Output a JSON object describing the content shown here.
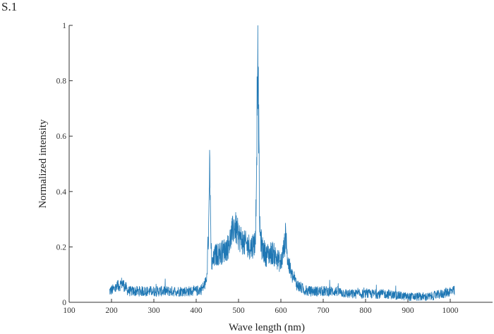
{
  "figure_label": "S.1",
  "chart_data": {
    "type": "line",
    "title": "",
    "xlabel": "Wave length (nm)",
    "ylabel": "Normalized intensity",
    "xlim": [
      100,
      1100
    ],
    "ylim": [
      0,
      1
    ],
    "x_ticks": [
      100,
      200,
      300,
      400,
      500,
      600,
      700,
      800,
      900,
      1000
    ],
    "y_ticks": [
      0,
      0.2,
      0.4,
      0.6,
      0.8,
      1
    ],
    "y_tick_labels": [
      "0",
      "0.2",
      "0.4",
      "0.6",
      "0.8",
      "1"
    ],
    "grid": false,
    "legend": "none",
    "series": [
      {
        "color": "#1f77b4",
        "x": [
          195,
          210,
          225,
          240,
          260,
          280,
          300,
          320,
          340,
          360,
          380,
          400,
          415,
          425,
          430,
          432,
          434,
          437,
          445,
          460,
          475,
          485,
          490,
          500,
          515,
          530,
          540,
          543,
          545,
          547,
          550,
          555,
          565,
          580,
          590,
          600,
          608,
          612,
          616,
          625,
          640,
          660,
          680,
          700,
          730,
          760,
          800,
          850,
          900,
          950,
          980,
          1000,
          1010
        ],
        "y": [
          0.04,
          0.05,
          0.07,
          0.04,
          0.04,
          0.04,
          0.04,
          0.04,
          0.04,
          0.04,
          0.04,
          0.04,
          0.05,
          0.08,
          0.3,
          0.55,
          0.25,
          0.13,
          0.17,
          0.18,
          0.2,
          0.25,
          0.28,
          0.24,
          0.21,
          0.2,
          0.22,
          0.55,
          0.98,
          0.72,
          0.26,
          0.2,
          0.17,
          0.18,
          0.16,
          0.14,
          0.2,
          0.25,
          0.15,
          0.1,
          0.06,
          0.04,
          0.04,
          0.04,
          0.04,
          0.03,
          0.03,
          0.03,
          0.02,
          0.02,
          0.03,
          0.04,
          0.04
        ]
      }
    ]
  }
}
